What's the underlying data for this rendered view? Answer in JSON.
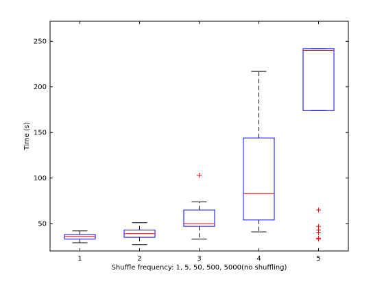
{
  "chart_data": {
    "type": "box",
    "title": "",
    "xlabel": "Shuffle frequency: 1, 5, 50, 500, 5000(no shuffling)",
    "ylabel": "Time (s)",
    "ylim": [
      20,
      272
    ],
    "yticks": [
      50,
      100,
      150,
      200,
      250
    ],
    "categories": [
      "1",
      "2",
      "3",
      "4",
      "5"
    ],
    "boxes": [
      {
        "whisker_low": 29,
        "q1": 33,
        "median": 36,
        "q3": 38,
        "whisker_high": 42,
        "outliers": []
      },
      {
        "whisker_low": 27,
        "q1": 35,
        "median": 39,
        "q3": 43,
        "whisker_high": 51,
        "outliers": []
      },
      {
        "whisker_low": 33,
        "q1": 47,
        "median": 50,
        "q3": 65,
        "whisker_high": 74,
        "outliers": [
          103
        ]
      },
      {
        "whisker_low": 41,
        "q1": 54,
        "median": 83,
        "q3": 144,
        "whisker_high": 217,
        "outliers": []
      },
      {
        "whisker_low": 174,
        "q1": 174,
        "median": 240,
        "q3": 242,
        "whisker_high": 242,
        "outliers": [
          65,
          47,
          43,
          40,
          34,
          33
        ]
      }
    ],
    "colors": {
      "box": "#0000ff",
      "median": "#ff0000",
      "whisker": "#000000",
      "outlier": "#ff0000"
    },
    "grid": false,
    "legend": "none"
  }
}
